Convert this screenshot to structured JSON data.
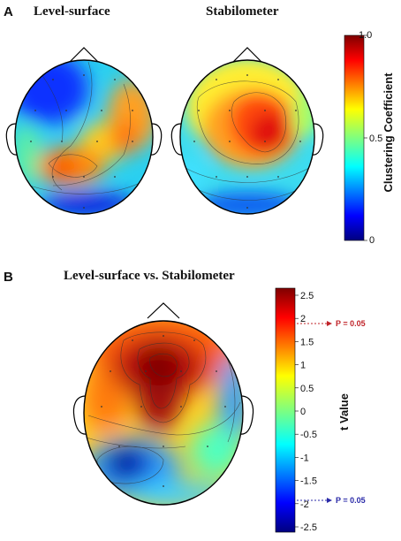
{
  "panel_a": {
    "letter": "A",
    "titles": [
      "Level-surface",
      "Stabilometer"
    ],
    "colorbar": {
      "label": "Clustering Coefficient",
      "ticks": [
        "1.0",
        "0.5",
        "0"
      ]
    }
  },
  "panel_b": {
    "letter": "B",
    "title": "Level-surface vs. Stabilometer",
    "colorbar": {
      "label": "t Value",
      "ticks": [
        "2.5",
        "2",
        "1.5",
        "1",
        "0.5",
        "0",
        "-0.5",
        "-1",
        "-1.5",
        "-2",
        "-2.5"
      ],
      "threshold_positive": "P = 0.05",
      "threshold_negative": "P = 0.05",
      "threshold_positive_color": "#c0242a",
      "threshold_negative_color": "#2a2aa8"
    }
  },
  "colormap": [
    "#00007f",
    "#0000ff",
    "#007fff",
    "#00ffff",
    "#7fff7f",
    "#ffff00",
    "#ff7f00",
    "#ff0000",
    "#7f0000"
  ]
}
